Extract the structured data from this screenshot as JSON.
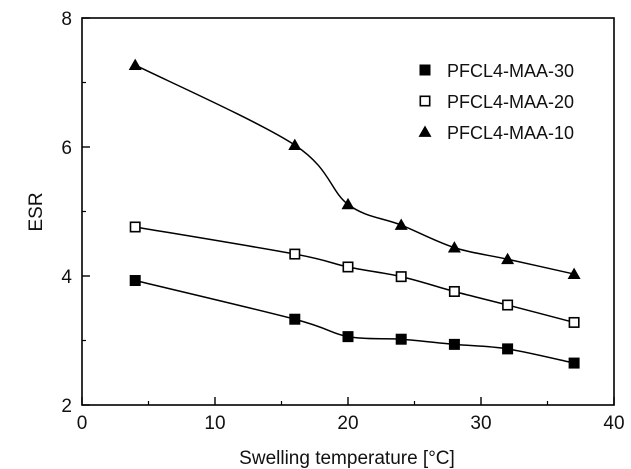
{
  "chart_data": {
    "type": "line",
    "title": "",
    "xlabel": "Swelling temperature [°C]",
    "ylabel": "ESR",
    "xlim": [
      0,
      40
    ],
    "ylim": [
      2,
      8
    ],
    "xticks": [
      0,
      10,
      20,
      30,
      40
    ],
    "yticks": [
      2,
      4,
      6,
      8
    ],
    "grid": false,
    "legend_position": "top-right",
    "x": [
      4,
      16,
      20,
      24,
      28,
      32,
      37
    ],
    "series": [
      {
        "name": "PFCL4-MAA-30",
        "marker": "square-filled",
        "values": [
          3.93,
          3.33,
          3.06,
          3.02,
          2.94,
          2.87,
          2.65
        ]
      },
      {
        "name": "PFCL4-MAA-20",
        "marker": "square-open",
        "values": [
          4.76,
          4.34,
          4.14,
          3.99,
          3.76,
          3.55,
          3.28
        ]
      },
      {
        "name": "PFCL4-MAA-10",
        "marker": "triangle-filled",
        "values": [
          7.27,
          6.03,
          5.11,
          4.79,
          4.44,
          4.26,
          4.03
        ]
      }
    ],
    "colors": {
      "line": "#000000",
      "marker": "#000000"
    }
  }
}
